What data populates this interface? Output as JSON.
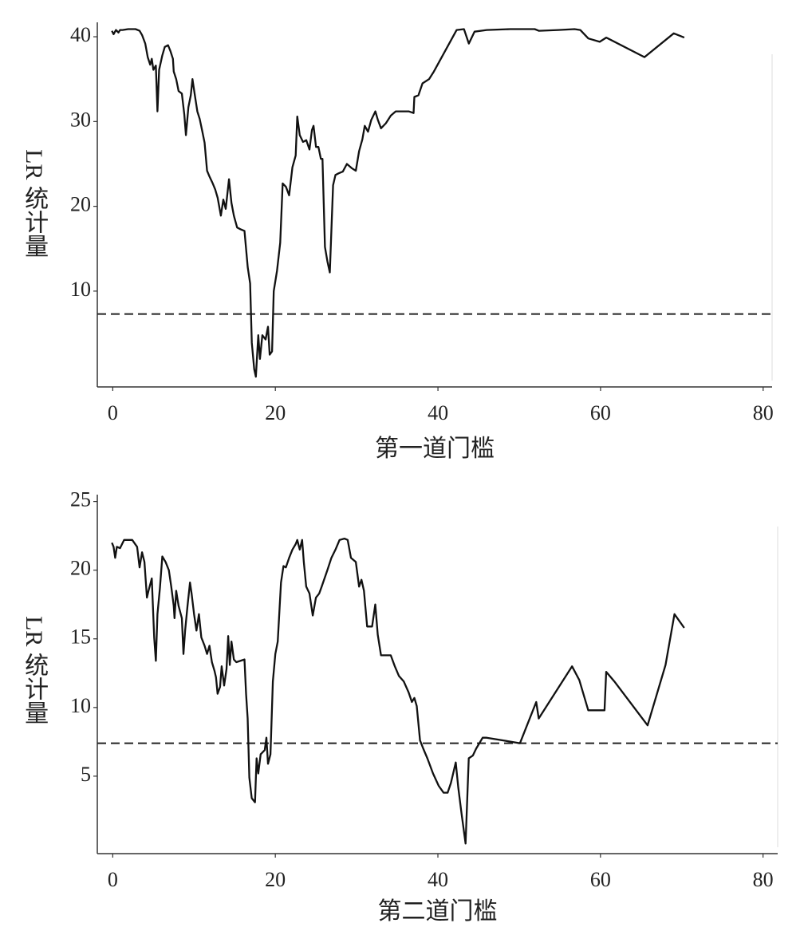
{
  "chart_data": [
    {
      "type": "line",
      "x_label": "第一道门槛",
      "y_label": "LR 统计量",
      "color": "#111111",
      "xlim": [
        -1.9,
        81.1
      ],
      "xticks": [
        0,
        20,
        40,
        60,
        80
      ],
      "ylim": [
        -1.3,
        41.7
      ],
      "yticks": [
        10,
        20,
        30,
        40
      ],
      "reference_line": 7.3,
      "x": [
        -0.1,
        0.1,
        0.4,
        0.7,
        0.9,
        1.2,
        1.9,
        2.8,
        3.3,
        3.6,
        4.0,
        4.3,
        4.6,
        4.8,
        5.0,
        5.3,
        5.5,
        5.7,
        6.1,
        6.4,
        6.8,
        7.1,
        7.4,
        7.5,
        7.8,
        8.1,
        8.5,
        8.8,
        9.0,
        9.3,
        9.6,
        9.8,
        10.1,
        10.4,
        10.7,
        11.0,
        11.3,
        11.6,
        11.9,
        12.3,
        12.6,
        12.9,
        13.3,
        13.6,
        13.9,
        14.3,
        14.6,
        14.9,
        15.3,
        15.7,
        16.2,
        16.6,
        16.9,
        17.1,
        17.4,
        17.6,
        17.9,
        18.1,
        18.4,
        18.8,
        19.1,
        19.3,
        19.6,
        19.8,
        20.2,
        20.6,
        20.9,
        21.3,
        21.7,
        22.1,
        22.5,
        22.7,
        23.0,
        23.4,
        23.8,
        24.2,
        24.5,
        24.7,
        25.0,
        25.3,
        25.6,
        25.8,
        26.1,
        26.4,
        26.7,
        27.1,
        27.4,
        27.8,
        28.3,
        28.8,
        29.4,
        29.9,
        30.3,
        30.7,
        31.0,
        31.4,
        31.8,
        32.3,
        32.6,
        33.0,
        33.6,
        34.2,
        34.8,
        35.5,
        36.4,
        37.0,
        37.1,
        37.6,
        38.1,
        38.9,
        39.5,
        42.3,
        43.2,
        43.8,
        44.5,
        46.0,
        48.9,
        51.9,
        52.4,
        54.8,
        56.8,
        57.5,
        58.5,
        59.9,
        60.7,
        65.4,
        69.0,
        70.3
      ],
      "values": [
        40.7,
        40.3,
        40.8,
        40.5,
        40.8,
        40.8,
        40.9,
        40.9,
        40.7,
        40.2,
        39.2,
        37.6,
        36.7,
        37.4,
        36.1,
        36.6,
        31.2,
        36.1,
        37.8,
        38.8,
        39.0,
        38.3,
        37.4,
        35.9,
        35.0,
        33.6,
        33.3,
        30.8,
        28.4,
        31.7,
        33.1,
        35.0,
        33.1,
        31.2,
        30.3,
        28.9,
        27.5,
        24.2,
        23.5,
        22.7,
        22.0,
        21.0,
        18.9,
        20.8,
        19.7,
        23.2,
        20.4,
        18.9,
        17.5,
        17.3,
        17.1,
        12.8,
        10.9,
        3.9,
        0.8,
        -0.1,
        4.8,
        2.0,
        4.8,
        4.3,
        5.8,
        2.5,
        2.9,
        10.0,
        12.4,
        15.7,
        22.7,
        22.3,
        21.3,
        24.6,
        26.0,
        30.6,
        28.4,
        27.6,
        27.8,
        26.7,
        29.0,
        29.5,
        27.0,
        27.0,
        25.6,
        25.6,
        15.2,
        13.5,
        12.2,
        22.5,
        23.7,
        23.9,
        24.1,
        25.0,
        24.5,
        24.2,
        26.5,
        27.9,
        29.5,
        28.8,
        30.2,
        31.2,
        30.2,
        29.2,
        29.8,
        30.7,
        31.2,
        31.2,
        31.2,
        31.0,
        32.9,
        33.1,
        34.5,
        35.0,
        35.9,
        40.8,
        40.9,
        39.2,
        40.6,
        40.8,
        40.9,
        40.9,
        40.7,
        40.8,
        40.9,
        40.8,
        39.8,
        39.4,
        39.9,
        37.6,
        40.4,
        39.9
      ]
    },
    {
      "type": "line",
      "x_label": "第二道门槛",
      "y_label": "LR 统计量",
      "color": "#111111",
      "xlim": [
        -1.9,
        81.8
      ],
      "xticks": [
        0,
        20,
        40,
        60,
        80
      ],
      "ylim": [
        -0.64,
        25.5
      ],
      "yticks": [
        5,
        10,
        15,
        20,
        25
      ],
      "reference_line": 7.4,
      "x": [
        -0.1,
        0.1,
        0.3,
        0.5,
        0.9,
        1.4,
        2.4,
        3.0,
        3.3,
        3.6,
        3.9,
        4.2,
        4.4,
        4.8,
        5.1,
        5.3,
        5.5,
        5.8,
        6.1,
        6.5,
        6.9,
        7.2,
        7.5,
        7.6,
        7.8,
        8.1,
        8.5,
        8.7,
        8.9,
        9.2,
        9.5,
        9.7,
        10.0,
        10.3,
        10.6,
        10.9,
        11.3,
        11.6,
        11.9,
        12.2,
        12.5,
        12.7,
        12.9,
        13.2,
        13.4,
        13.7,
        14.0,
        14.2,
        14.4,
        14.6,
        14.9,
        15.2,
        16.2,
        16.4,
        16.6,
        16.8,
        17.1,
        17.5,
        17.7,
        17.9,
        18.2,
        18.7,
        18.9,
        19.1,
        19.4,
        19.7,
        20.0,
        20.3,
        20.7,
        21.0,
        21.3,
        21.7,
        22.1,
        22.5,
        22.7,
        23.0,
        23.3,
        23.5,
        23.8,
        24.2,
        24.6,
        25.0,
        25.4,
        25.7,
        26.4,
        26.9,
        27.4,
        27.9,
        28.5,
        28.9,
        29.3,
        29.9,
        30.3,
        30.6,
        30.9,
        31.3,
        31.9,
        32.3,
        32.6,
        33.0,
        33.5,
        34.2,
        34.7,
        35.2,
        35.8,
        36.4,
        36.8,
        37.1,
        37.4,
        37.8,
        38.2,
        38.7,
        39.4,
        40.1,
        40.7,
        41.2,
        41.6,
        42.2,
        42.5,
        42.9,
        43.4,
        43.8,
        44.3,
        44.7,
        45.5,
        46.0,
        50.1,
        52.1,
        52.4,
        56.5,
        57.4,
        58.5,
        59.9,
        60.5,
        60.7,
        61.7,
        65.8,
        68.0,
        69.1,
        70.3
      ],
      "values": [
        22.0,
        21.7,
        20.9,
        21.7,
        21.6,
        22.2,
        22.2,
        21.7,
        20.2,
        21.3,
        20.6,
        18.0,
        18.5,
        19.4,
        15.1,
        13.4,
        16.8,
        18.7,
        21.0,
        20.6,
        20.0,
        18.8,
        17.4,
        16.5,
        18.5,
        17.4,
        16.5,
        13.9,
        15.6,
        17.4,
        19.1,
        18.3,
        16.8,
        15.6,
        16.8,
        15.1,
        14.5,
        13.9,
        14.5,
        13.3,
        12.7,
        12.2,
        11.0,
        11.5,
        13.0,
        11.6,
        12.8,
        15.2,
        13.1,
        14.8,
        13.5,
        13.3,
        13.5,
        11.0,
        9.2,
        4.9,
        3.4,
        3.1,
        6.3,
        5.2,
        6.6,
        6.9,
        7.8,
        5.9,
        6.6,
        11.9,
        13.9,
        14.8,
        19.1,
        20.3,
        20.2,
        20.9,
        21.5,
        21.9,
        22.2,
        21.5,
        22.2,
        20.6,
        18.8,
        18.3,
        16.7,
        18.0,
        18.3,
        18.8,
        20.0,
        20.9,
        21.5,
        22.2,
        22.3,
        22.2,
        20.9,
        20.6,
        18.8,
        19.3,
        18.5,
        15.9,
        15.9,
        17.5,
        15.3,
        13.8,
        13.8,
        13.8,
        13.0,
        12.3,
        11.9,
        11.1,
        10.4,
        10.7,
        10.1,
        7.6,
        7.0,
        6.3,
        5.2,
        4.3,
        3.8,
        3.8,
        4.5,
        6.0,
        4.2,
        2.3,
        0.1,
        6.3,
        6.5,
        7.0,
        7.8,
        7.8,
        7.4,
        10.4,
        9.2,
        13.0,
        12.0,
        9.8,
        9.8,
        9.8,
        12.6,
        11.9,
        8.7,
        13.1,
        16.8,
        15.8
      ]
    }
  ]
}
